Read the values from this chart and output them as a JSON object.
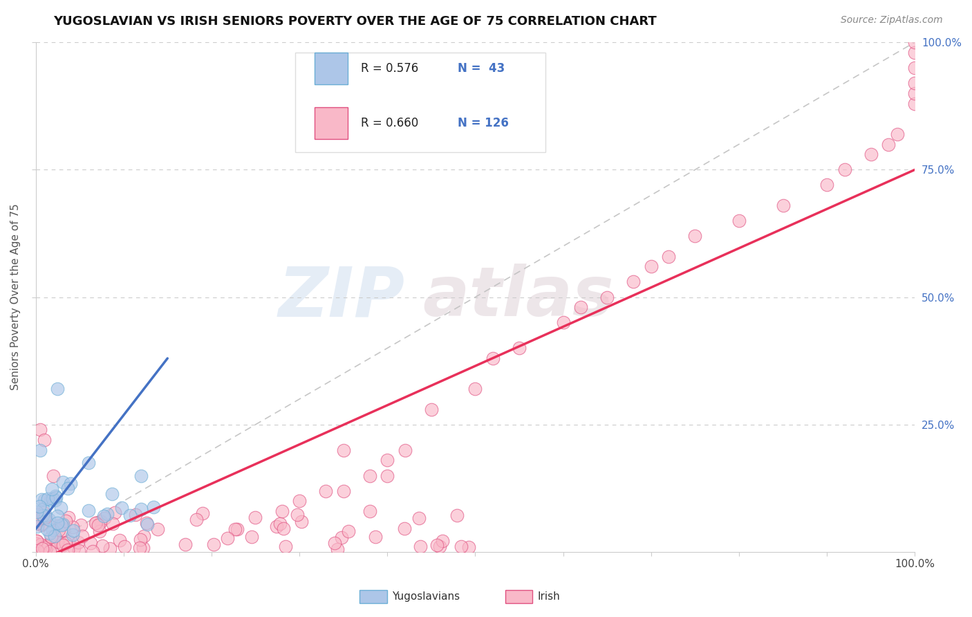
{
  "title": "YUGOSLAVIAN VS IRISH SENIORS POVERTY OVER THE AGE OF 75 CORRELATION CHART",
  "source": "Source: ZipAtlas.com",
  "ylabel": "Seniors Poverty Over the Age of 75",
  "xlim": [
    0,
    1
  ],
  "ylim": [
    0,
    1
  ],
  "legend_r1": "R = 0.576",
  "legend_n1": "N =  43",
  "legend_r2": "R = 0.660",
  "legend_n2": "N = 126",
  "color_yugo_fill": "#adc6e8",
  "color_yugo_edge": "#6baed6",
  "color_irish_fill": "#f9b8c8",
  "color_irish_edge": "#e05080",
  "color_yugo_line": "#4472c4",
  "color_irish_line": "#e8305a",
  "color_ref_line": "#c0c0c0",
  "color_grid": "#cccccc",
  "background_color": "#ffffff",
  "watermark_color": "#d0dff0",
  "watermark_color2": "#d8c8d0"
}
